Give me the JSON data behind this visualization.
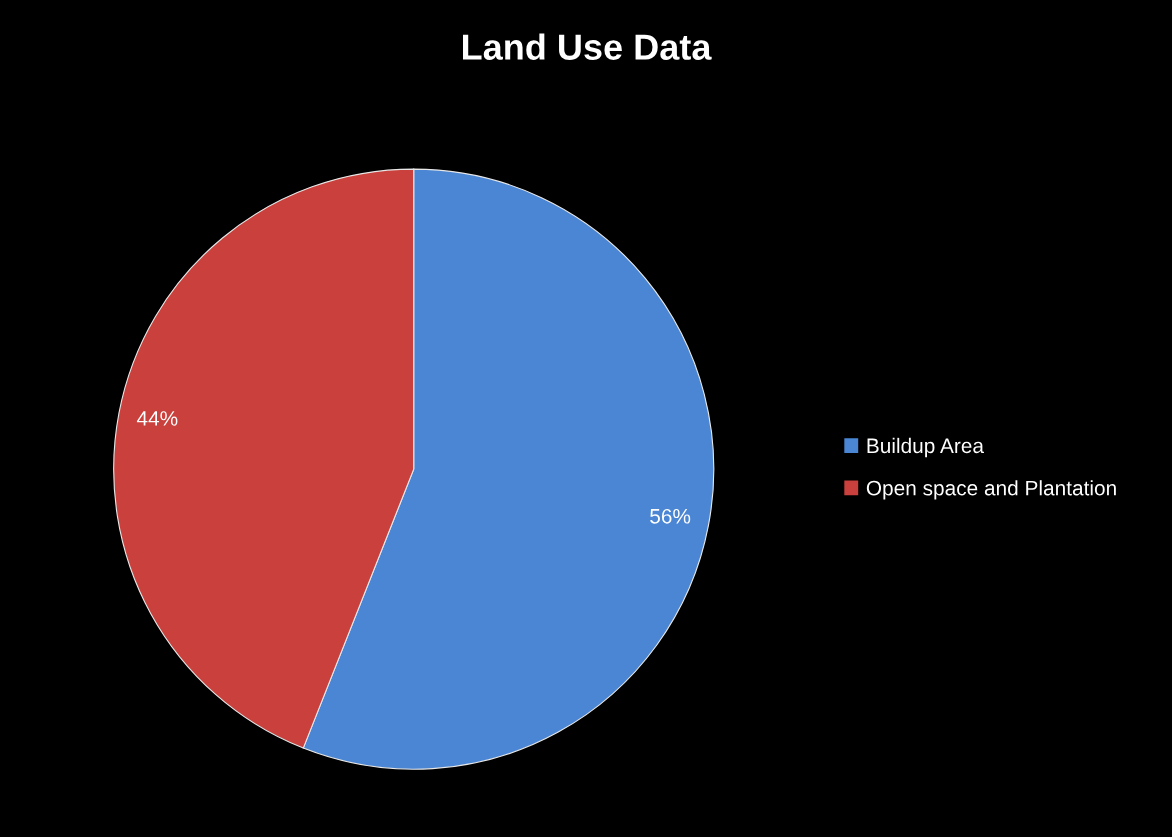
{
  "chart_data": {
    "type": "pie",
    "title": "Land Use Data",
    "categories": [
      "Buildup Area",
      "Open space and Plantation"
    ],
    "values": [
      56,
      44
    ],
    "colors": [
      "#4a86d4",
      "#c9403c"
    ],
    "value_labels": [
      "56%",
      "44%"
    ],
    "legend": "right"
  }
}
